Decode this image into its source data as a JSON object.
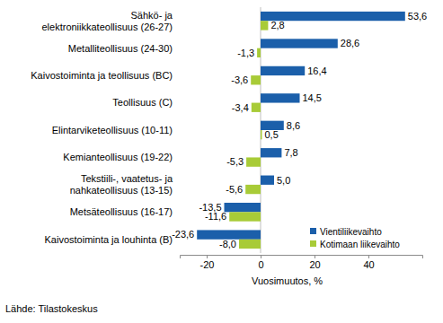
{
  "chart_data": {
    "type": "bar",
    "orientation": "horizontal",
    "categories": [
      "Sähkö- ja\nelektroniikkateollisuus (26-27)",
      "Metalliteollisuus (24-30)",
      "Kaivostoiminta ja teollisuus (BC)",
      "Teollisuus (C)",
      "Elintarviketeollisuus (10-11)",
      "Kemianteollisuus (19-22)",
      "Tekstiili-, vaatetus- ja\nnahkateollisuus (13-15)",
      "Metsäteollisuus (16-17)",
      "Kaivostoiminta ja louhinta (B)"
    ],
    "series": [
      {
        "name": "Vientiliikevaihto",
        "color": "#1b5faa",
        "values": [
          53.6,
          28.6,
          16.4,
          14.5,
          8.6,
          7.8,
          5.0,
          -13.5,
          -23.6
        ],
        "value_labels": [
          "53,6",
          "28,6",
          "16,4",
          "14,5",
          "8,6",
          "7,8",
          "5,0",
          "-13,5",
          "-23,6"
        ]
      },
      {
        "name": "Kotimaan liikevaihto",
        "color": "#a8cb37",
        "values": [
          2.8,
          -1.3,
          -3.6,
          -3.4,
          0.5,
          -5.3,
          -5.6,
          -11.6,
          -8.0
        ],
        "value_labels": [
          "2,8",
          "-1,3",
          "-3,6",
          "-3,4",
          "0,5",
          "-5,3",
          "-5,6",
          "-11,6",
          "-8,0"
        ]
      }
    ],
    "xlim": [
      -30,
      60
    ],
    "xticks": [
      -20,
      0,
      20,
      40
    ],
    "x_label": "Vuosimuutos, %",
    "source": "Lähde: Tilastokeskus",
    "data_labels": true,
    "grid": false,
    "legend": "bottom-right"
  }
}
